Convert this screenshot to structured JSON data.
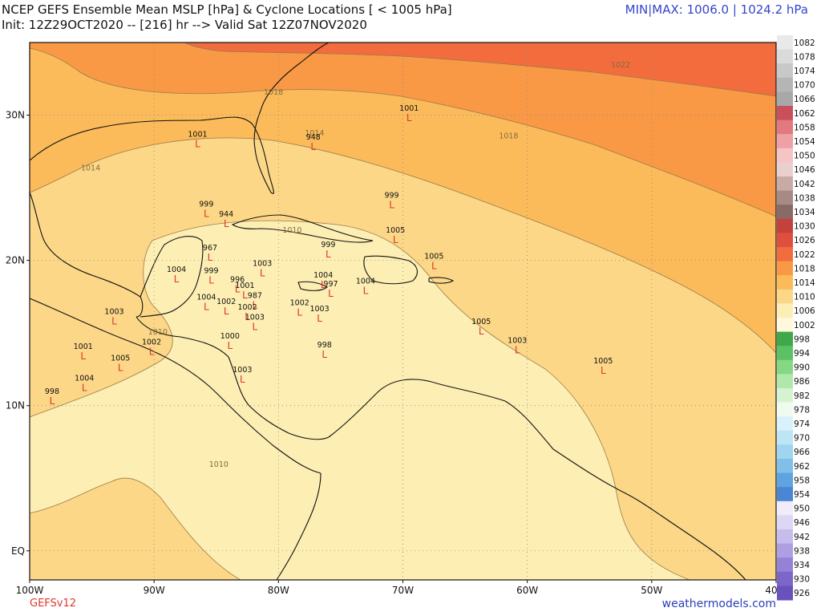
{
  "header": {
    "title": "NCEP GEFS Ensemble Mean MSLP [hPa] & Cyclone Locations [ < 1005 hPa]",
    "init_line": "Init: 12Z29OCT2020 -- [216] hr --> Valid Sat 12Z07NOV2020",
    "minmax": "MIN|MAX: 1006.0 | 1024.2 hPa"
  },
  "footer": {
    "model": "GEFSv12",
    "site": "weathermodels.com"
  },
  "colors": {
    "title_text": "#111111",
    "minmax_text": "#3344cc",
    "model_text": "#e0362b",
    "site_text": "#2b3fb5",
    "low_marker": "#e0362b",
    "bg_1006": "#fdeeb3",
    "bg_1010": "#fcd787",
    "bg_1014": "#fbbb5a",
    "bg_1018": "#f99945",
    "bg_1022": "#f26c3e"
  },
  "map": {
    "lon_range": [
      -100,
      -40
    ],
    "lat_range": [
      -2,
      35
    ],
    "lon_ticks": [
      {
        "lon": -100,
        "label": "100W"
      },
      {
        "lon": -90,
        "label": "90W"
      },
      {
        "lon": -80,
        "label": "80W"
      },
      {
        "lon": -70,
        "label": "70W"
      },
      {
        "lon": -60,
        "label": "60W"
      },
      {
        "lon": -50,
        "label": "50W"
      },
      {
        "lon": -40,
        "label": "40W"
      }
    ],
    "lat_ticks": [
      {
        "lat": 30,
        "label": "30N"
      },
      {
        "lat": 20,
        "label": "20N"
      },
      {
        "lat": 10,
        "label": "10N"
      },
      {
        "lat": 0,
        "label": "EQ"
      }
    ],
    "contour_labels": [
      {
        "text": "1022",
        "lon": -52.5,
        "lat": 33.3
      },
      {
        "text": "1018",
        "lon": -80.4,
        "lat": 31.4
      },
      {
        "text": "1018",
        "lon": -61.5,
        "lat": 28.4
      },
      {
        "text": "1014",
        "lon": -95.1,
        "lat": 26.2
      },
      {
        "text": "1014",
        "lon": -77.1,
        "lat": 28.6
      },
      {
        "text": "1010",
        "lon": -78.9,
        "lat": 21.9
      },
      {
        "text": "1010",
        "lon": -89.7,
        "lat": 14.9
      },
      {
        "text": "1010",
        "lon": -84.8,
        "lat": 5.8
      }
    ],
    "lows": [
      {
        "value": "1001",
        "lon": -69.5,
        "lat": 30.2
      },
      {
        "value": "1001",
        "lon": -86.5,
        "lat": 28.4
      },
      {
        "value": "948",
        "lon": -77.2,
        "lat": 28.2
      },
      {
        "value": "999",
        "lon": -85.8,
        "lat": 23.6
      },
      {
        "value": "944",
        "lon": -84.2,
        "lat": 22.9
      },
      {
        "value": "999",
        "lon": -70.9,
        "lat": 24.2
      },
      {
        "value": "999",
        "lon": -76.0,
        "lat": 20.8
      },
      {
        "value": "1005",
        "lon": -70.6,
        "lat": 21.8
      },
      {
        "value": "1005",
        "lon": -67.5,
        "lat": 20.0
      },
      {
        "value": "967",
        "lon": -85.5,
        "lat": 20.6
      },
      {
        "value": "1004",
        "lon": -88.2,
        "lat": 19.1
      },
      {
        "value": "999",
        "lon": -85.4,
        "lat": 19.0
      },
      {
        "value": "1003",
        "lon": -81.3,
        "lat": 19.5
      },
      {
        "value": "1004",
        "lon": -76.4,
        "lat": 18.7
      },
      {
        "value": "997",
        "lon": -75.8,
        "lat": 18.1
      },
      {
        "value": "1004",
        "lon": -73.0,
        "lat": 18.3
      },
      {
        "value": "996",
        "lon": -83.3,
        "lat": 18.4
      },
      {
        "value": "1001",
        "lon": -82.7,
        "lat": 18.0
      },
      {
        "value": "987",
        "lon": -81.9,
        "lat": 17.3
      },
      {
        "value": "1004",
        "lon": -85.8,
        "lat": 17.2
      },
      {
        "value": "1002",
        "lon": -84.2,
        "lat": 16.9
      },
      {
        "value": "1002",
        "lon": -82.5,
        "lat": 16.5
      },
      {
        "value": "1002",
        "lon": -78.3,
        "lat": 16.8
      },
      {
        "value": "1003",
        "lon": -76.7,
        "lat": 16.4
      },
      {
        "value": "1003",
        "lon": -81.9,
        "lat": 15.8
      },
      {
        "value": "1003",
        "lon": -93.2,
        "lat": 16.2
      },
      {
        "value": "1000",
        "lon": -83.9,
        "lat": 14.5
      },
      {
        "value": "998",
        "lon": -76.3,
        "lat": 13.9
      },
      {
        "value": "1005",
        "lon": -63.7,
        "lat": 15.5
      },
      {
        "value": "1003",
        "lon": -60.8,
        "lat": 14.2
      },
      {
        "value": "1002",
        "lon": -90.2,
        "lat": 14.1
      },
      {
        "value": "1001",
        "lon": -95.7,
        "lat": 13.8
      },
      {
        "value": "1005",
        "lon": -92.7,
        "lat": 13.0
      },
      {
        "value": "1005",
        "lon": -53.9,
        "lat": 12.8
      },
      {
        "value": "1003",
        "lon": -82.9,
        "lat": 12.2
      },
      {
        "value": "1004",
        "lon": -95.6,
        "lat": 11.6
      },
      {
        "value": "998",
        "lon": -98.2,
        "lat": 10.7
      }
    ]
  },
  "colorbar": {
    "levels": [
      {
        "label": "1082",
        "color": "#e9e9e9"
      },
      {
        "label": "1078",
        "color": "#dadada"
      },
      {
        "label": "1074",
        "color": "#c8c8c8"
      },
      {
        "label": "1070",
        "color": "#b5b5b5"
      },
      {
        "label": "1066",
        "color": "#a8a8a8"
      },
      {
        "label": "1062",
        "color": "#c9505a"
      },
      {
        "label": "1058",
        "color": "#e07a80"
      },
      {
        "label": "1054",
        "color": "#eea0a5"
      },
      {
        "label": "1050",
        "color": "#f7c4c6"
      },
      {
        "label": "1046",
        "color": "#e9cfcf"
      },
      {
        "label": "1042",
        "color": "#c9aba6"
      },
      {
        "label": "1038",
        "color": "#a88a85"
      },
      {
        "label": "1034",
        "color": "#8a6a66"
      },
      {
        "label": "1030",
        "color": "#c3423b"
      },
      {
        "label": "1026",
        "color": "#e04f3e"
      },
      {
        "label": "1022",
        "color": "#f26c3e"
      },
      {
        "label": "1018",
        "color": "#f99945"
      },
      {
        "label": "1014",
        "color": "#fbbb5a"
      },
      {
        "label": "1010",
        "color": "#fcd787"
      },
      {
        "label": "1006",
        "color": "#fdeeb3"
      },
      {
        "label": "1002",
        "color": "#fff8dc"
      },
      {
        "label": "998",
        "color": "#3fa84a"
      },
      {
        "label": "994",
        "color": "#5cc162"
      },
      {
        "label": "990",
        "color": "#85d784"
      },
      {
        "label": "986",
        "color": "#b0e8ab"
      },
      {
        "label": "982",
        "color": "#d6f3d1"
      },
      {
        "label": "978",
        "color": "#f0fbf0"
      },
      {
        "label": "974",
        "color": "#d9f1fb"
      },
      {
        "label": "970",
        "color": "#bde5f6"
      },
      {
        "label": "966",
        "color": "#9fd5f1"
      },
      {
        "label": "962",
        "color": "#7fbfea"
      },
      {
        "label": "958",
        "color": "#5fa3e0"
      },
      {
        "label": "954",
        "color": "#4a86d3"
      },
      {
        "label": "950",
        "color": "#f0ecfa"
      },
      {
        "label": "946",
        "color": "#ddd6f4"
      },
      {
        "label": "942",
        "color": "#c7bdec"
      },
      {
        "label": "938",
        "color": "#ae9fe2"
      },
      {
        "label": "934",
        "color": "#9582d6"
      },
      {
        "label": "930",
        "color": "#7c66c9"
      },
      {
        "label": "926",
        "color": "#6a52bd"
      }
    ]
  }
}
